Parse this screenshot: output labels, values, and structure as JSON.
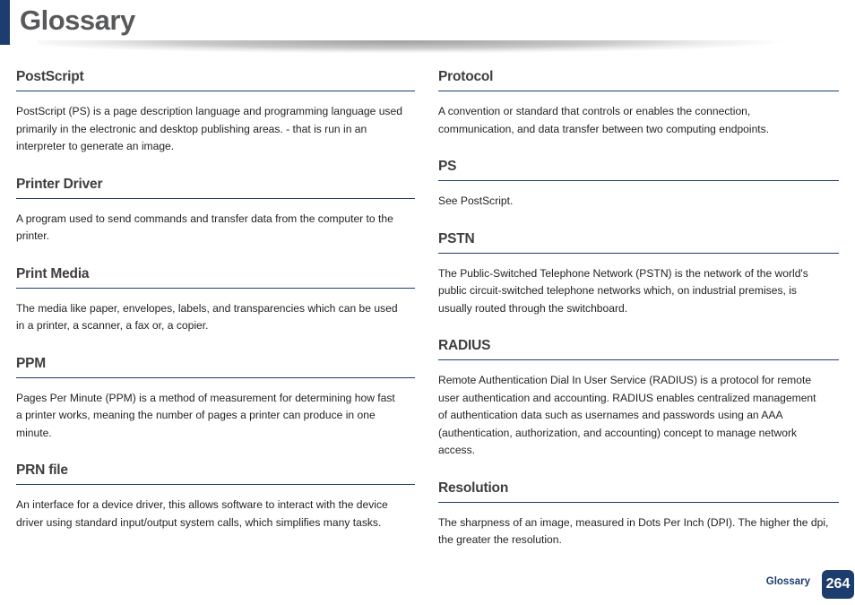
{
  "header": {
    "title": "Glossary"
  },
  "columns": {
    "left": [
      {
        "term": "PostScript",
        "definition": "PostScript (PS) is a page description language and programming language used\nprimarily in the electronic and desktop publishing areas. - that is run in an\ninterpreter to generate an image."
      },
      {
        "term": "Printer Driver",
        "definition": "A program used to send commands and transfer data from the computer to the\nprinter."
      },
      {
        "term": "Print Media",
        "definition": "The media like paper, envelopes, labels, and transparencies which can be used\nin a printer, a scanner, a fax or, a copier."
      },
      {
        "term": "PPM",
        "definition": "Pages Per Minute (PPM) is a method of measurement for determining how fast\na printer works, meaning the number of pages a printer can produce in one\nminute."
      },
      {
        "term": "PRN file",
        "definition": "An interface for a device driver, this allows software to interact with the device\ndriver using standard input/output system calls, which simplifies many tasks."
      }
    ],
    "right": [
      {
        "term": "Protocol",
        "definition": "A convention or standard that controls or enables the connection,\ncommunication, and data transfer between two computing endpoints."
      },
      {
        "term": "PS",
        "definition": "See PostScript."
      },
      {
        "term": "PSTN",
        "definition": "The Public-Switched Telephone Network (PSTN) is the network of the world's\npublic circuit-switched telephone networks which, on industrial premises, is\nusually routed through the switchboard."
      },
      {
        "term": "RADIUS",
        "definition": "Remote Authentication Dial In User Service (RADIUS) is a protocol for remote\nuser authentication and accounting. RADIUS enables centralized management\nof authentication data such as usernames and passwords using an AAA\n(authentication, authorization, and accounting) concept to manage network\naccess."
      },
      {
        "term": "Resolution",
        "definition": "The sharpness of an image, measured in Dots Per Inch (DPI). The higher the dpi,\nthe greater the resolution."
      }
    ]
  },
  "footer": {
    "section_label": "Glossary",
    "page_number": "264"
  },
  "colors": {
    "accent_navy": "#1c3d6e",
    "title_gray": "#58595b",
    "body_text": "#231f20"
  }
}
